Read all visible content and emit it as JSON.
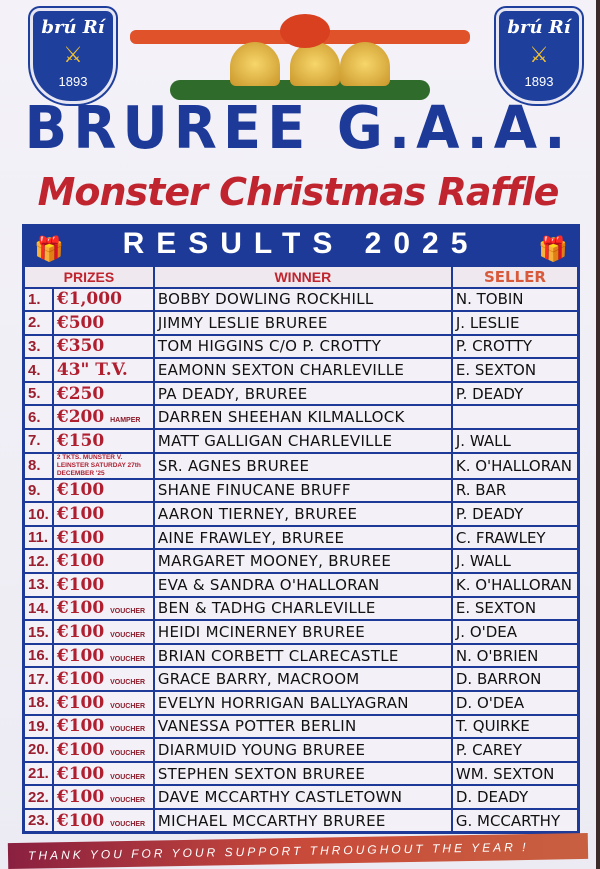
{
  "logo": {
    "text": "brú Rí",
    "year": "1893"
  },
  "header": {
    "title": "BRUREE G.A.A.",
    "subtitle": "Monster Christmas Raffle",
    "banner": "RESULTS 2025"
  },
  "table": {
    "columns": [
      "PRIZES",
      "WINNER",
      "SELLER"
    ],
    "rows": [
      {
        "n": "1.",
        "prize": "€1,000",
        "note": "",
        "winner": "Bobby Dowling Rockhill",
        "seller": "N. Tobin"
      },
      {
        "n": "2.",
        "prize": "€500",
        "note": "",
        "winner": "Jimmy Leslie Bruree",
        "seller": "J. Leslie"
      },
      {
        "n": "3.",
        "prize": "€350",
        "note": "",
        "winner": "Tom Higgins c/o P. Crotty",
        "seller": "P. Crotty"
      },
      {
        "n": "4.",
        "prize": "43\" T.V.",
        "note": "",
        "winner": "Eamonn Sexton Charleville",
        "seller": "E. Sexton"
      },
      {
        "n": "5.",
        "prize": "€250",
        "note": "",
        "winner": "Pa Deady, Bruree",
        "seller": "P. Deady"
      },
      {
        "n": "6.",
        "prize": "€200",
        "note": "HAMPER",
        "winner": "Darren Sheehan Kilmallock",
        "seller": ""
      },
      {
        "n": "7.",
        "prize": "€150",
        "note": "",
        "winner": "Matt Galligan Charleville",
        "seller": "J. Wall"
      },
      {
        "n": "8.",
        "prize": "2 TKTS. MUNSTER V. LEINSTER SATURDAY 27th DECEMBER '25",
        "note": "",
        "winner": "Sr. Agnes Bruree",
        "seller": "K. O'Halloran"
      },
      {
        "n": "9.",
        "prize": "€100",
        "note": "",
        "winner": "Shane Finucane Bruff",
        "seller": "R. Bar"
      },
      {
        "n": "10.",
        "prize": "€100",
        "note": "",
        "winner": "Aaron Tierney, Bruree",
        "seller": "P. Deady"
      },
      {
        "n": "11.",
        "prize": "€100",
        "note": "",
        "winner": "Aine Frawley, Bruree",
        "seller": "C. Frawley"
      },
      {
        "n": "12.",
        "prize": "€100",
        "note": "",
        "winner": "Margaret Mooney, Bruree",
        "seller": "J. Wall"
      },
      {
        "n": "13.",
        "prize": "€100",
        "note": "",
        "winner": "Eva & Sandra O'Halloran",
        "seller": "K. O'Halloran"
      },
      {
        "n": "14.",
        "prize": "€100",
        "note": "VOUCHER",
        "winner": "Ben & Tadhg Charleville",
        "seller": "E. Sexton"
      },
      {
        "n": "15.",
        "prize": "€100",
        "note": "VOUCHER",
        "winner": "Heidi McInerney Bruree",
        "seller": "J. O'Dea"
      },
      {
        "n": "16.",
        "prize": "€100",
        "note": "VOUCHER",
        "winner": "Brian Corbett Clarecastle",
        "seller": "N. O'Brien"
      },
      {
        "n": "17.",
        "prize": "€100",
        "note": "VOUCHER",
        "winner": "Grace Barry, Macroom",
        "seller": "D. Barron"
      },
      {
        "n": "18.",
        "prize": "€100",
        "note": "VOUCHER",
        "winner": "Evelyn Horrigan Ballyagran",
        "seller": "D. O'Dea"
      },
      {
        "n": "19.",
        "prize": "€100",
        "note": "VOUCHER",
        "winner": "Vanessa Potter Berlin",
        "seller": "T. Quirke"
      },
      {
        "n": "20.",
        "prize": "€100",
        "note": "VOUCHER",
        "winner": "Diarmuid Young Bruree",
        "seller": "P. Carey"
      },
      {
        "n": "21.",
        "prize": "€100",
        "note": "VOUCHER",
        "winner": "Stephen Sexton Bruree",
        "seller": "Wm. Sexton"
      },
      {
        "n": "22.",
        "prize": "€100",
        "note": "VOUCHER",
        "winner": "Dave McCarthy Castletown",
        "seller": "D. Deady"
      },
      {
        "n": "23.",
        "prize": "€100",
        "note": "VOUCHER",
        "winner": "Michael McCarthy Bruree",
        "seller": "G. McCarthy"
      }
    ]
  },
  "footer": "THANK YOU FOR YOUR SUPPORT THROUGHOUT THE YEAR !",
  "colors": {
    "blue": "#1e3a98",
    "red": "#c0242e"
  }
}
